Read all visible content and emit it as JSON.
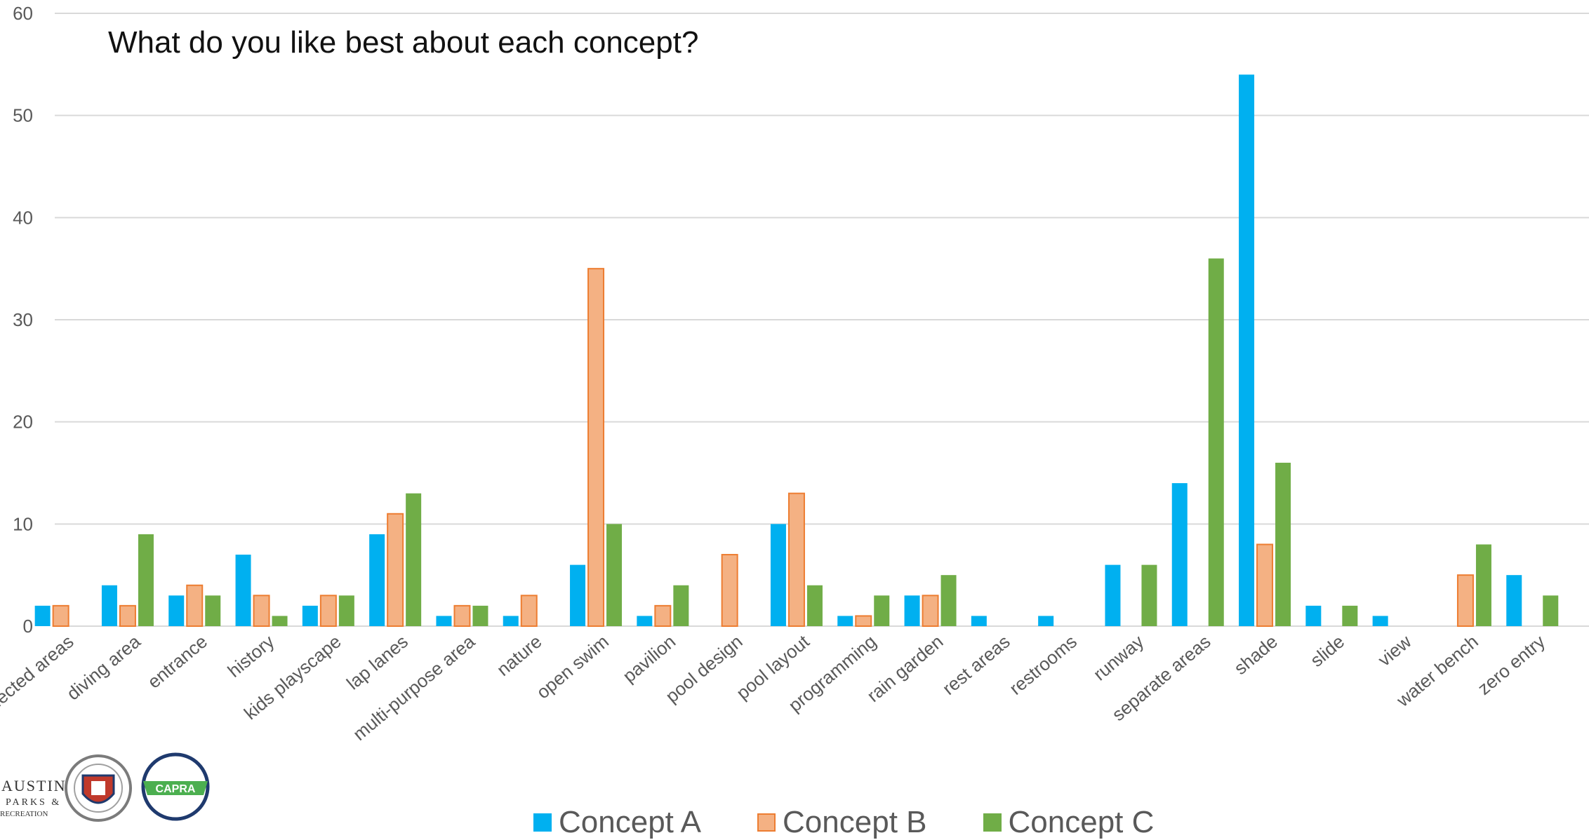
{
  "subtitle": "What do you like best about each concept?",
  "logos": {
    "austin_parks": "AUSTIN PARKS & RECREATION",
    "city_seal": "CITY OF AUSTIN",
    "capra": "CAPRA"
  },
  "colors": {
    "concept_a": "#00b0f0",
    "concept_b": "#f4b183",
    "concept_b_stroke": "#ed7d31",
    "concept_c": "#70ad47",
    "grid": "#d9d9d9",
    "axis_text": "#595959"
  },
  "chart_data": {
    "type": "bar",
    "categories": [
      "connected areas",
      "diving area",
      "entrance",
      "history",
      "kids playscape",
      "lap lanes",
      "multi-purpose area",
      "nature",
      "open swim",
      "pavilion",
      "pool design",
      "pool layout",
      "programming",
      "rain garden",
      "rest areas",
      "restrooms",
      "runway",
      "separate areas",
      "shade",
      "slide",
      "view",
      "water bench",
      "zero entry"
    ],
    "series": [
      {
        "name": "Concept A",
        "values": [
          2,
          4,
          3,
          7,
          2,
          9,
          1,
          1,
          6,
          1,
          0,
          10,
          1,
          3,
          1,
          1,
          6,
          14,
          54,
          2,
          1,
          0,
          5
        ]
      },
      {
        "name": "Concept B",
        "values": [
          2,
          2,
          4,
          3,
          3,
          11,
          2,
          3,
          35,
          2,
          7,
          13,
          1,
          3,
          0,
          0,
          0,
          0,
          8,
          0,
          0,
          5,
          0
        ]
      },
      {
        "name": "Concept C",
        "values": [
          0,
          9,
          3,
          1,
          3,
          13,
          2,
          0,
          10,
          4,
          0,
          4,
          3,
          5,
          0,
          0,
          6,
          36,
          16,
          2,
          0,
          8,
          3
        ]
      }
    ],
    "y_ticks": [
      "0",
      "10",
      "20",
      "30",
      "40",
      "50",
      "60"
    ],
    "ylim": [
      0,
      60
    ],
    "grid": true,
    "legend_position": "bottom"
  }
}
